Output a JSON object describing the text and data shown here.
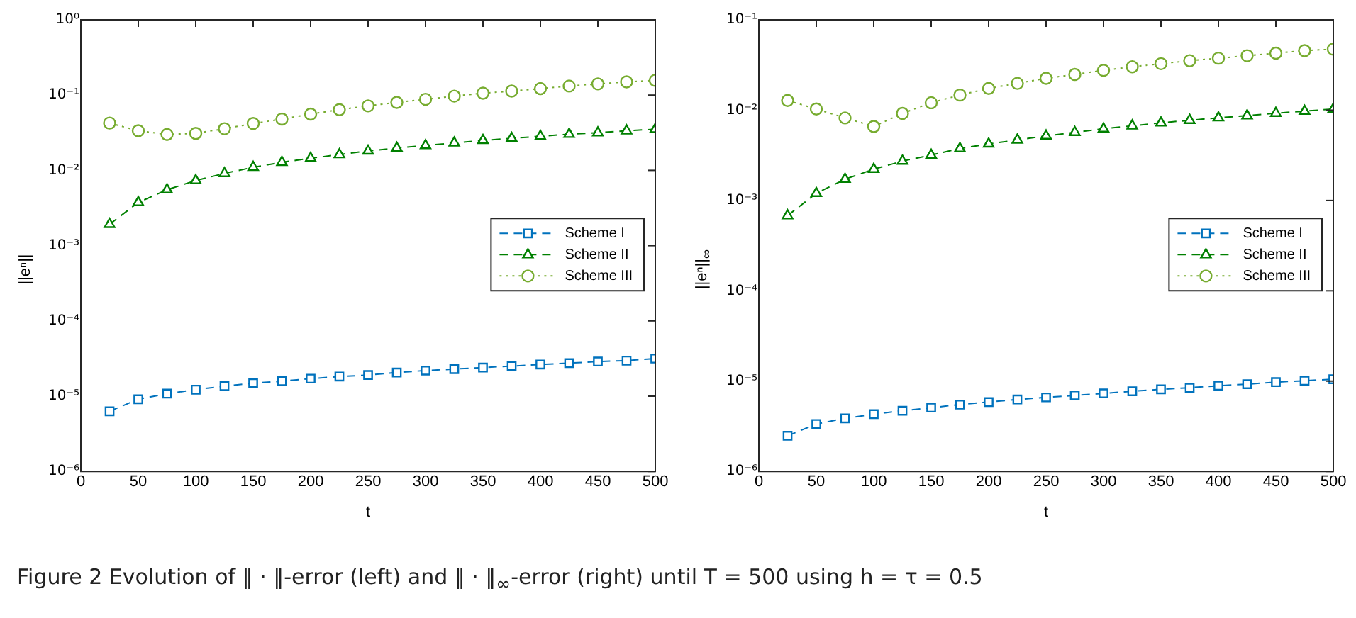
{
  "chart_data": [
    {
      "type": "line",
      "xlabel": "t",
      "ylabel": "||eⁿ||",
      "log": "y",
      "grid": false,
      "legend": "right",
      "x": [
        25,
        50,
        75,
        100,
        125,
        150,
        175,
        200,
        225,
        250,
        275,
        300,
        325,
        350,
        375,
        400,
        425,
        450,
        475,
        500
      ],
      "xlim": [
        0,
        500
      ],
      "xticks": [
        0,
        50,
        100,
        150,
        200,
        250,
        300,
        350,
        400,
        450,
        500
      ],
      "ylim": [
        1e-06,
        1
      ],
      "yticks": [
        {
          "value": 1e-06,
          "label": "10⁻⁶"
        },
        {
          "value": 1e-05,
          "label": "10⁻⁵"
        },
        {
          "value": 0.0001,
          "label": "10⁻⁴"
        },
        {
          "value": 0.001,
          "label": "10⁻³"
        },
        {
          "value": 0.01,
          "label": "10⁻²"
        },
        {
          "value": 0.1,
          "label": "10⁻¹"
        },
        {
          "value": 1,
          "label": "10⁰"
        }
      ],
      "series": [
        {
          "name": "Scheme I",
          "color": "#0072bd",
          "marker": "square",
          "line_style": "dashed",
          "values": [
            6.3e-06,
            9.1e-06,
            1.08e-05,
            1.22e-05,
            1.36e-05,
            1.49e-05,
            1.58e-05,
            1.71e-05,
            1.82e-05,
            1.91e-05,
            2.06e-05,
            2.19e-05,
            2.29e-05,
            2.4e-05,
            2.51e-05,
            2.63e-05,
            2.75e-05,
            2.88e-05,
            2.97e-05,
            3.16e-05
          ]
        },
        {
          "name": "Scheme II",
          "color": "#008000",
          "marker": "triangle",
          "line_style": "dashed",
          "values": [
            0.00192,
            0.00375,
            0.00553,
            0.00733,
            0.0091,
            0.011,
            0.0128,
            0.0145,
            0.0162,
            0.0181,
            0.0198,
            0.0214,
            0.0232,
            0.025,
            0.0267,
            0.0284,
            0.0302,
            0.0316,
            0.0336,
            0.0352
          ]
        },
        {
          "name": "Scheme III",
          "color": "#77ac30",
          "marker": "circle",
          "line_style": "dotted",
          "values": [
            0.0425,
            0.0336,
            0.03,
            0.031,
            0.0358,
            0.0419,
            0.048,
            0.056,
            0.064,
            0.072,
            0.08,
            0.088,
            0.097,
            0.106,
            0.113,
            0.122,
            0.132,
            0.141,
            0.15,
            0.157
          ]
        }
      ],
      "annotations": [
        "Figure 2  Evolution of ‖ · ‖-error (left) and ‖ · ‖$_{∞}$-error (right) until T = 500 using h = τ = 0.5"
      ]
    },
    {
      "type": "line",
      "xlabel": "t",
      "ylabel": "||eⁿ||$_{∞}$",
      "log": "y",
      "grid": false,
      "legend": "right",
      "x": [
        25,
        50,
        75,
        100,
        125,
        150,
        175,
        200,
        225,
        250,
        275,
        300,
        325,
        350,
        375,
        400,
        425,
        450,
        475,
        500
      ],
      "xlim": [
        0,
        500
      ],
      "xticks": [
        0,
        50,
        100,
        150,
        200,
        250,
        300,
        350,
        400,
        450,
        500
      ],
      "ylim": [
        1e-06,
        0.1
      ],
      "yticks": [
        {
          "value": 1e-06,
          "label": "10⁻⁶"
        },
        {
          "value": 1e-05,
          "label": "10⁻⁵"
        },
        {
          "value": 0.0001,
          "label": "10⁻⁴"
        },
        {
          "value": 0.001,
          "label": "10⁻³"
        },
        {
          "value": 0.01,
          "label": "10⁻²"
        },
        {
          "value": 0.1,
          "label": "10⁻¹"
        }
      ],
      "series": [
        {
          "name": "Scheme I",
          "color": "#0072bd",
          "marker": "square",
          "line_style": "dashed",
          "values": [
            2.48e-06,
            3.35e-06,
            3.87e-06,
            4.3e-06,
            4.7e-06,
            5.08e-06,
            5.5e-06,
            5.86e-06,
            6.26e-06,
            6.6e-06,
            6.95e-06,
            7.31e-06,
            7.71e-06,
            8.12e-06,
            8.45e-06,
            8.89e-06,
            9.25e-06,
            9.74e-06,
            1.01e-05,
            1.05e-05
          ]
        },
        {
          "name": "Scheme II",
          "color": "#008000",
          "marker": "triangle",
          "line_style": "dashed",
          "values": [
            0.00068,
            0.0012,
            0.00172,
            0.00222,
            0.00273,
            0.00318,
            0.00376,
            0.00423,
            0.00468,
            0.00519,
            0.00568,
            0.00621,
            0.00671,
            0.00724,
            0.00773,
            0.00824,
            0.00869,
            0.00925,
            0.00975,
            0.0103
          ]
        },
        {
          "name": "Scheme III",
          "color": "#77ac30",
          "marker": "circle",
          "line_style": "dotted",
          "values": [
            0.0128,
            0.0103,
            0.0082,
            0.0066,
            0.0092,
            0.0121,
            0.0147,
            0.0174,
            0.0198,
            0.0225,
            0.0249,
            0.0276,
            0.0302,
            0.0327,
            0.0353,
            0.0376,
            0.0401,
            0.0428,
            0.0456,
            0.0474
          ]
        }
      ]
    }
  ]
}
